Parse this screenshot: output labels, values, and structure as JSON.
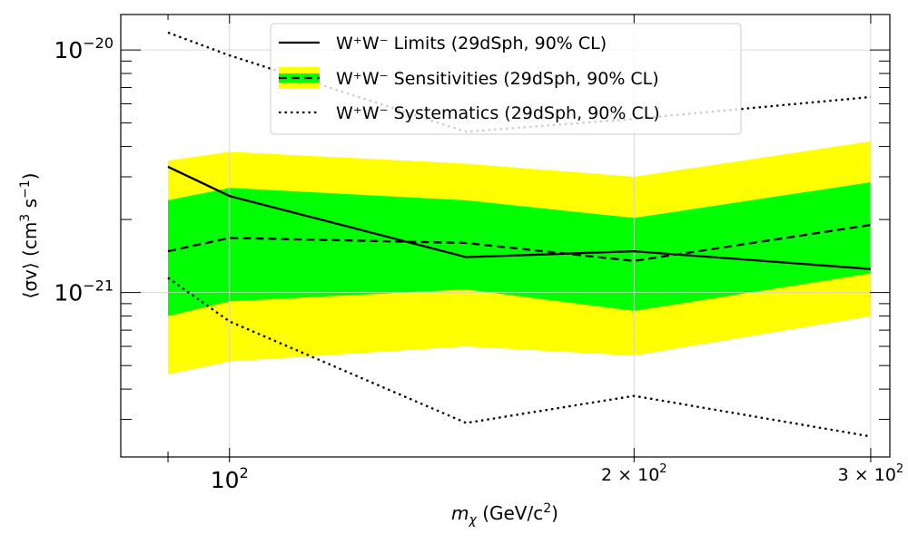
{
  "chart_data": {
    "type": "line",
    "x_scale": "log",
    "y_scale": "log",
    "xlim": [
      83,
      310
    ],
    "ylim": [
      2.1e-22,
      1.4e-20
    ],
    "x": [
      90,
      100,
      150,
      200,
      300
    ],
    "xlabel": {
      "base": "m",
      "sub": "χ",
      "unit_pre": "(GeV/c",
      "unit_sup": "2",
      "unit_post": ")"
    },
    "ylabel": {
      "text_pre": "⟨σv⟩ (cm",
      "sup1": "3",
      "mid": " s",
      "sup2": "−1",
      "post": ")"
    },
    "x_ticks": [
      {
        "value": 100,
        "mantissa": "",
        "exp": "2",
        "size": "large"
      },
      {
        "value": 200,
        "mantissa": "2 × 10",
        "exp": "2",
        "size": "small"
      },
      {
        "value": 300,
        "mantissa": "3 × 10",
        "exp": "2",
        "size": "small"
      }
    ],
    "y_ticks": [
      {
        "value": 1e-21,
        "exp": "−21"
      },
      {
        "value": 1e-20,
        "exp": "−20"
      }
    ],
    "grid": true,
    "legend_position": "top-center",
    "series": [
      {
        "key": "limits",
        "name": "W⁺W⁻ Limits (29dSph, 90% CL)",
        "style": "solid",
        "color": "#000000",
        "values": [
          3.3e-21,
          2.5e-21,
          1.4e-21,
          1.48e-21,
          1.25e-21
        ]
      },
      {
        "key": "sensitivities",
        "name": "W⁺W⁻ Sensitivities (29dSph, 90% CL)",
        "style": "dashed",
        "color": "#000000",
        "values": [
          1.48e-21,
          1.68e-21,
          1.6e-21,
          1.35e-21,
          1.9e-21
        ]
      },
      {
        "key": "systematics",
        "name": "W⁺W⁻ Systematics (29dSph, 90% CL)",
        "style": "dotted",
        "color": "#000000",
        "upper": [
          1.18e-20,
          9.5e-21,
          4.6e-21,
          5.2e-21,
          6.4e-21
        ],
        "lower": [
          1.15e-21,
          7.6e-22,
          2.9e-22,
          3.75e-22,
          2.55e-22
        ]
      }
    ],
    "bands": [
      {
        "key": "band-95",
        "color": "#ffff00",
        "upper": [
          3.5e-21,
          3.8e-21,
          3.4e-21,
          3e-21,
          4.2e-21
        ],
        "lower": [
          4.6e-22,
          5.2e-22,
          6e-22,
          5.5e-22,
          8e-22
        ]
      },
      {
        "key": "band-68",
        "color": "#00ff00",
        "upper": [
          2.4e-21,
          2.7e-21,
          2.4e-21,
          2.03e-21,
          2.85e-21
        ],
        "lower": [
          8e-22,
          9.2e-22,
          1.03e-21,
          8.4e-22,
          1.2e-21
        ]
      }
    ]
  }
}
